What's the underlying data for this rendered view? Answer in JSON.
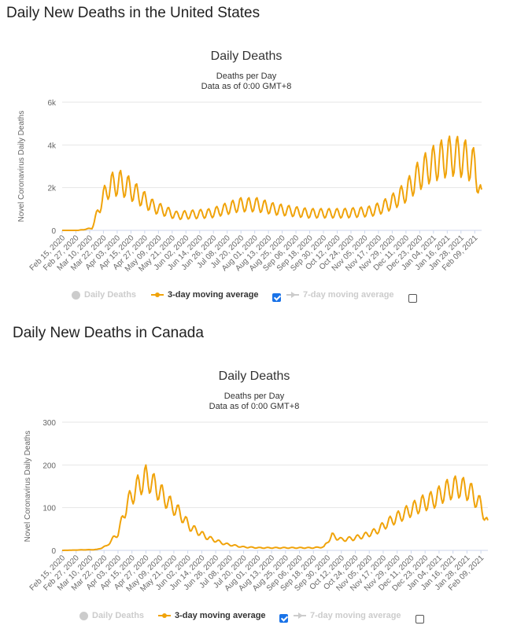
{
  "colors": {
    "accent": "#f0a30a",
    "grid": "#e6e6e6",
    "axis_text": "#666666",
    "inactive": "#cccccc",
    "checkbox_checked": "#1a73e8"
  },
  "us": {
    "page_title": "Daily New Deaths in the United States",
    "legend": {
      "daily": "Daily Deaths",
      "avg3": "3-day moving average",
      "avg7": "7-day moving average",
      "avg3_checked": true,
      "avg7_checked": false
    },
    "chart_data": {
      "type": "line",
      "title": "Daily Deaths",
      "subtitle": "Deaths per Day",
      "subtitle2": "Data as of 0:00 GMT+8",
      "ylabel": "Novel Coronavirus Daily Deaths",
      "xlabel": "",
      "ylim": [
        0,
        6000
      ],
      "yticks": [
        0,
        2000,
        4000,
        6000
      ],
      "ytick_labels": [
        "0",
        "2k",
        "4k",
        "6k"
      ],
      "x_start": "Feb 15, 2020",
      "x_days": 366,
      "xticks": [
        "Feb 15, 2020",
        "Feb 27, 2020",
        "Mar 10, 2020",
        "Mar 22, 2020",
        "Apr 03, 2020",
        "Apr 15, 2020",
        "Apr 27, 2020",
        "May 09, 2020",
        "May 21, 2020",
        "Jun 02, 2020",
        "Jun 14, 2020",
        "Jun 26, 2020",
        "Jul 08, 2020",
        "Jul 20, 2020",
        "Aug 01, 2020",
        "Aug 13, 2020",
        "Aug 25, 2020",
        "Sep 06, 2020",
        "Sep 18, 2020",
        "Sep 30, 2020",
        "Oct 12, 2020",
        "Oct 24, 2020",
        "Nov 05, 2020",
        "Nov 17, 2020",
        "Nov 29, 2020",
        "Dec 11, 2020",
        "Dec 23, 2020",
        "Jan 04, 2021",
        "Jan 16, 2021",
        "Jan 28, 2021",
        "Feb 09, 2021"
      ],
      "series": [
        {
          "name": "3-day moving average",
          "envelope_days": [
            0,
            14,
            26,
            34,
            40,
            46,
            52,
            58,
            70,
            80,
            100,
            130,
            155,
            170,
            185,
            200,
            215,
            230,
            245,
            260,
            270,
            280,
            290,
            300,
            310,
            320,
            330,
            340,
            350,
            360,
            366
          ],
          "envelope_values": [
            0,
            0,
            100,
            1300,
            2000,
            2200,
            2200,
            2000,
            1500,
            1100,
            700,
            800,
            1200,
            1200,
            1000,
            900,
            800,
            800,
            800,
            850,
            900,
            1100,
            1400,
            1800,
            2500,
            3000,
            3300,
            3500,
            3400,
            3000,
            1500
          ],
          "weekly_amplitude": 0.28
        }
      ]
    }
  },
  "ca": {
    "page_title": "Daily New Deaths in Canada",
    "legend": {
      "daily": "Daily Deaths",
      "avg3": "3-day moving average",
      "avg7": "7-day moving average",
      "avg3_checked": true,
      "avg7_checked": false
    },
    "chart_data": {
      "type": "line",
      "title": "Daily Deaths",
      "subtitle": "Deaths per Day",
      "subtitle2": "Data as of 0:00 GMT+8",
      "ylabel": "Novel Coronavirus Daily Deaths",
      "xlabel": "",
      "ylim": [
        0,
        300
      ],
      "yticks": [
        0,
        100,
        200,
        300
      ],
      "ytick_labels": [
        "0",
        "100",
        "200",
        "300"
      ],
      "x_start": "Feb 15, 2020",
      "x_days": 366,
      "xticks": [
        "Feb 15, 2020",
        "Feb 27, 2020",
        "Mar 10, 2020",
        "Mar 22, 2020",
        "Apr 03, 2020",
        "Apr 15, 2020",
        "Apr 27, 2020",
        "May 09, 2020",
        "May 21, 2020",
        "Jun 02, 2020",
        "Jun 14, 2020",
        "Jun 26, 2020",
        "Jul 08, 2020",
        "Jul 20, 2020",
        "Aug 01, 2020",
        "Aug 13, 2020",
        "Aug 25, 2020",
        "Sep 06, 2020",
        "Sep 18, 2020",
        "Sep 30, 2020",
        "Oct 12, 2020",
        "Oct 24, 2020",
        "Nov 05, 2020",
        "Nov 17, 2020",
        "Nov 29, 2020",
        "Dec 11, 2020",
        "Dec 23, 2020",
        "Jan 04, 2021",
        "Jan 16, 2021",
        "Jan 28, 2021",
        "Feb 09, 2021"
      ],
      "series": [
        {
          "name": "3-day moving average",
          "envelope_days": [
            0,
            30,
            38,
            48,
            56,
            65,
            72,
            80,
            92,
            100,
            110,
            125,
            140,
            155,
            170,
            185,
            200,
            215,
            225,
            232,
            240,
            250,
            260,
            270,
            280,
            290,
            300,
            310,
            320,
            330,
            340,
            350,
            360,
            366
          ],
          "envelope_values": [
            0,
            2,
            10,
            40,
            110,
            150,
            170,
            150,
            110,
            90,
            55,
            30,
            15,
            8,
            6,
            6,
            6,
            6,
            8,
            35,
            25,
            28,
            35,
            45,
            65,
            80,
            95,
            110,
            120,
            140,
            150,
            140,
            105,
            60
          ],
          "weekly_amplitude": 0.18
        }
      ]
    }
  }
}
